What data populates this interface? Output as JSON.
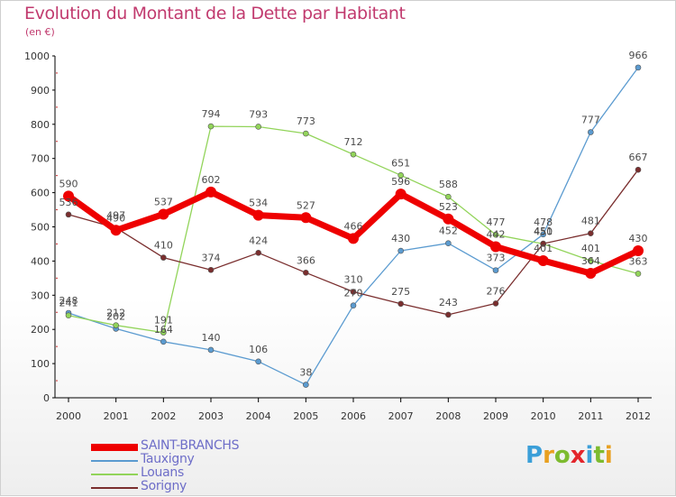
{
  "title": "Evolution du Montant de la Dette par Habitant",
  "subtitle": "(en €)",
  "logo": {
    "letters": [
      {
        "ch": "P",
        "color": "#3b9fd8"
      },
      {
        "ch": "r",
        "color": "#e8a020"
      },
      {
        "ch": "o",
        "color": "#7dbb2f"
      },
      {
        "ch": "x",
        "color": "#e3252b"
      },
      {
        "ch": "i",
        "color": "#3b9fd8"
      },
      {
        "ch": "t",
        "color": "#7dbb2f"
      },
      {
        "ch": "i",
        "color": "#e8a020"
      }
    ]
  },
  "chart_data": {
    "type": "line",
    "x": [
      "2000",
      "2001",
      "2002",
      "2003",
      "2004",
      "2005",
      "2006",
      "2007",
      "2008",
      "2009",
      "2010",
      "2011",
      "2012"
    ],
    "ylim": [
      0,
      1000
    ],
    "yticks": [
      "0",
      "100",
      "200",
      "300",
      "400",
      "500",
      "600",
      "700",
      "800",
      "900",
      "1000"
    ],
    "grid": false,
    "legend_position": "bottom-left",
    "series": [
      {
        "name": "SAINT-BRANCHS",
        "color": "#ee0000",
        "width": "thick",
        "values": [
          590,
          490,
          537,
          602,
          534,
          527,
          466,
          596,
          523,
          442,
          401,
          364,
          430
        ],
        "labels": [
          "590",
          "490",
          "537",
          "602",
          "534",
          "527",
          "466",
          "596",
          "523",
          "442",
          "401",
          "364",
          "430"
        ]
      },
      {
        "name": "Tauxigny",
        "color": "#5b9bd0",
        "width": "thin",
        "values": [
          248,
          202,
          164,
          140,
          106,
          38,
          270,
          430,
          452,
          373,
          478,
          777,
          966
        ],
        "labels": [
          "248",
          "202",
          "164",
          "140",
          "106",
          "38",
          "270",
          "430",
          "452",
          "373",
          "478",
          "777",
          "966"
        ]
      },
      {
        "name": "Louans",
        "color": "#92d45a",
        "width": "thin",
        "values": [
          241,
          212,
          191,
          794,
          793,
          773,
          712,
          651,
          588,
          477,
          450,
          401,
          363
        ],
        "labels": [
          "241",
          "212",
          "191",
          "794",
          "793",
          "773",
          "712",
          "651",
          "588",
          "477",
          "450",
          "401",
          "363"
        ]
      },
      {
        "name": "Sorigny",
        "color": "#7a2e2e",
        "width": "thin",
        "values": [
          536,
          497,
          410,
          374,
          424,
          366,
          310,
          275,
          243,
          276,
          451,
          481,
          667
        ],
        "labels": [
          "536",
          "497",
          "410",
          "374",
          "424",
          "366",
          "310",
          "275",
          "243",
          "276",
          "451",
          "481",
          "667"
        ]
      }
    ]
  }
}
